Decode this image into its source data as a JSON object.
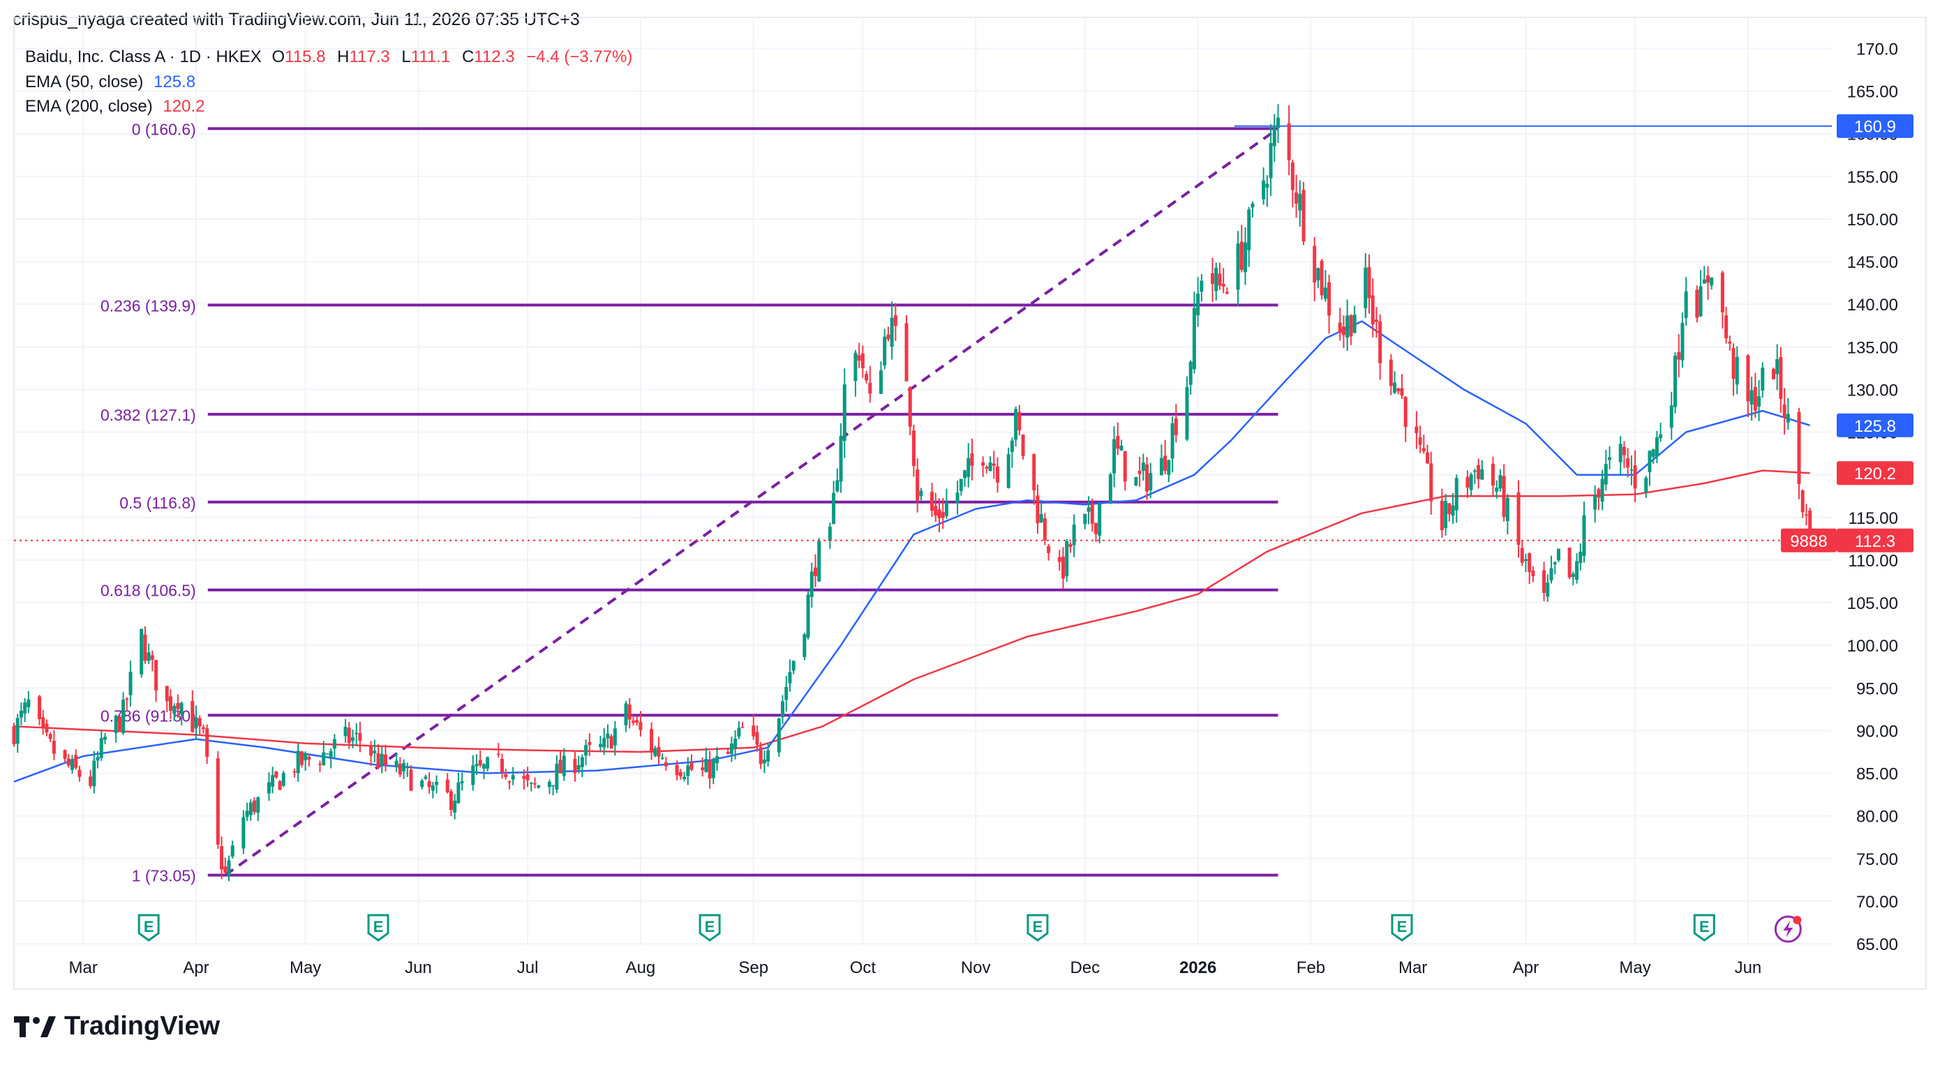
{
  "header": {
    "credit": "crispus_nyaga created with TradingView.com, Jun 11, 2026 07:35 UTC+3"
  },
  "legend": {
    "symbol": "Baidu, Inc. Class A · 1D · HKEX",
    "o_label": "O",
    "o_value": "115.8",
    "h_label": "H",
    "h_value": "117.3",
    "l_label": "L",
    "l_value": "111.1",
    "c_label": "C",
    "c_value": "112.3",
    "change": "−4.4 (−3.77%)",
    "ema50_label": "EMA (50, close)",
    "ema50_value": "125.8",
    "ema200_label": "EMA (200, close)",
    "ema200_value": "120.2"
  },
  "brand": {
    "name": "TradingView"
  },
  "colors": {
    "up": "#089981",
    "down": "#f23645",
    "ema50": "#2962ff",
    "ema200": "#f23645",
    "fib": "#7b1fa2",
    "grid": "#f0f3fa",
    "axis_text": "#131722",
    "price_line": "#f23645"
  },
  "chart_data": {
    "type": "candlestick",
    "title": "Baidu, Inc. Class A · 1D · HKEX",
    "ylim": [
      65,
      172
    ],
    "y_ticks": [
      "65.00",
      "70.00",
      "75.00",
      "80.00",
      "85.00",
      "90.00",
      "95.00",
      "100.00",
      "105.00",
      "110.00",
      "115.00",
      "120.00",
      "125.00",
      "130.00",
      "135.00",
      "140.00",
      "145.00",
      "150.00",
      "155.00",
      "160.00",
      "165.00",
      "170.0"
    ],
    "x_start": "2025-02-10",
    "x_end": "2026-06-24",
    "x_ticks": [
      {
        "date": "2025-03-01",
        "label": "Mar"
      },
      {
        "date": "2025-04-01",
        "label": "Apr"
      },
      {
        "date": "2025-05-01",
        "label": "May"
      },
      {
        "date": "2025-06-01",
        "label": "Jun"
      },
      {
        "date": "2025-07-01",
        "label": "Jul"
      },
      {
        "date": "2025-08-01",
        "label": "Aug"
      },
      {
        "date": "2025-09-01",
        "label": "Sep"
      },
      {
        "date": "2025-10-01",
        "label": "Oct"
      },
      {
        "date": "2025-11-01",
        "label": "Nov"
      },
      {
        "date": "2025-12-01",
        "label": "Dec"
      },
      {
        "date": "2026-01-01",
        "label": "2026",
        "bold": true
      },
      {
        "date": "2026-02-01",
        "label": "Feb"
      },
      {
        "date": "2026-03-01",
        "label": "Mar"
      },
      {
        "date": "2026-04-01",
        "label": "Apr"
      },
      {
        "date": "2026-05-01",
        "label": "May"
      },
      {
        "date": "2026-06-01",
        "label": "Jun"
      }
    ],
    "price_path": [
      [
        "2025-02-10",
        90
      ],
      [
        "2025-02-14",
        93
      ],
      [
        "2025-02-18",
        89
      ],
      [
        "2025-02-24",
        86
      ],
      [
        "2025-03-03",
        84
      ],
      [
        "2025-03-07",
        89
      ],
      [
        "2025-03-12",
        92
      ],
      [
        "2025-03-17",
        101
      ],
      [
        "2025-03-20",
        97
      ],
      [
        "2025-03-24",
        93
      ],
      [
        "2025-03-27",
        94
      ],
      [
        "2025-03-31",
        91
      ],
      [
        "2025-04-03",
        89
      ],
      [
        "2025-04-07",
        76
      ],
      [
        "2025-04-09",
        73
      ],
      [
        "2025-04-14",
        80
      ],
      [
        "2025-04-21",
        83
      ],
      [
        "2025-04-28",
        86
      ],
      [
        "2025-05-05",
        87
      ],
      [
        "2025-05-12",
        89
      ],
      [
        "2025-05-16",
        89
      ],
      [
        "2025-05-22",
        86
      ],
      [
        "2025-05-28",
        85
      ],
      [
        "2025-06-04",
        83
      ],
      [
        "2025-06-10",
        82
      ],
      [
        "2025-06-16",
        85
      ],
      [
        "2025-06-24",
        86
      ],
      [
        "2025-07-02",
        83
      ],
      [
        "2025-07-09",
        85
      ],
      [
        "2025-07-16",
        87
      ],
      [
        "2025-07-22",
        88
      ],
      [
        "2025-07-28",
        92
      ],
      [
        "2025-08-04",
        88
      ],
      [
        "2025-08-11",
        86
      ],
      [
        "2025-08-18",
        85
      ],
      [
        "2025-08-25",
        87
      ],
      [
        "2025-08-29",
        90
      ],
      [
        "2025-09-03",
        87
      ],
      [
        "2025-09-08",
        92
      ],
      [
        "2025-09-11",
        97
      ],
      [
        "2025-09-15",
        103
      ],
      [
        "2025-09-18",
        110
      ],
      [
        "2025-09-22",
        112
      ],
      [
        "2025-09-26",
        130
      ],
      [
        "2025-09-30",
        135
      ],
      [
        "2025-10-03",
        128
      ],
      [
        "2025-10-08",
        138
      ],
      [
        "2025-10-13",
        132
      ],
      [
        "2025-10-16",
        118
      ],
      [
        "2025-10-21",
        115
      ],
      [
        "2025-10-27",
        118
      ],
      [
        "2025-11-03",
        123
      ],
      [
        "2025-11-07",
        121
      ],
      [
        "2025-11-12",
        126
      ],
      [
        "2025-11-18",
        116
      ],
      [
        "2025-11-24",
        108
      ],
      [
        "2025-11-28",
        113
      ],
      [
        "2025-12-04",
        115
      ],
      [
        "2025-12-09",
        123
      ],
      [
        "2025-12-15",
        119
      ],
      [
        "2025-12-22",
        121
      ],
      [
        "2025-12-29",
        131
      ],
      [
        "2026-01-02",
        144
      ],
      [
        "2026-01-07",
        142
      ],
      [
        "2026-01-12",
        145
      ],
      [
        "2026-01-16",
        150
      ],
      [
        "2026-01-21",
        158
      ],
      [
        "2026-01-23",
        160.6
      ],
      [
        "2026-01-27",
        155
      ],
      [
        "2026-02-02",
        145
      ],
      [
        "2026-02-06",
        140
      ],
      [
        "2026-02-10",
        137
      ],
      [
        "2026-02-16",
        142
      ],
      [
        "2026-02-20",
        135
      ],
      [
        "2026-02-26",
        129
      ],
      [
        "2026-03-03",
        122
      ],
      [
        "2026-03-09",
        114
      ],
      [
        "2026-03-13",
        118
      ],
      [
        "2026-03-19",
        121
      ],
      [
        "2026-03-25",
        118
      ],
      [
        "2026-03-31",
        110
      ],
      [
        "2026-04-06",
        105
      ],
      [
        "2026-04-10",
        110
      ],
      [
        "2026-04-14",
        107
      ],
      [
        "2026-04-17",
        114
      ],
      [
        "2026-04-22",
        120
      ],
      [
        "2026-04-27",
        122
      ],
      [
        "2026-05-02",
        119
      ],
      [
        "2026-05-07",
        124
      ],
      [
        "2026-05-12",
        132
      ],
      [
        "2026-05-15",
        143
      ],
      [
        "2026-05-19",
        140
      ],
      [
        "2026-05-22",
        145
      ],
      [
        "2026-05-27",
        134
      ],
      [
        "2026-06-01",
        128
      ],
      [
        "2026-06-04",
        130
      ],
      [
        "2026-06-08",
        133
      ],
      [
        "2026-06-11",
        128
      ],
      [
        "2026-06-15",
        119
      ],
      [
        "2026-06-18",
        112.3
      ]
    ],
    "ema50": [
      [
        "2025-02-10",
        84
      ],
      [
        "2025-03-01",
        87
      ],
      [
        "2025-04-01",
        89
      ],
      [
        "2025-04-20",
        88
      ],
      [
        "2025-05-20",
        86
      ],
      [
        "2025-06-20",
        85
      ],
      [
        "2025-07-20",
        85.3
      ],
      [
        "2025-08-20",
        86.5
      ],
      [
        "2025-09-05",
        88
      ],
      [
        "2025-09-25",
        100
      ],
      [
        "2025-10-15",
        113
      ],
      [
        "2025-11-01",
        116
      ],
      [
        "2025-11-15",
        117
      ],
      [
        "2025-12-01",
        116.5
      ],
      [
        "2025-12-15",
        117
      ],
      [
        "2025-12-31",
        120
      ],
      [
        "2026-01-10",
        124
      ],
      [
        "2026-01-25",
        131
      ],
      [
        "2026-02-05",
        136
      ],
      [
        "2026-02-15",
        138
      ],
      [
        "2026-03-01",
        134
      ],
      [
        "2026-03-15",
        130
      ],
      [
        "2026-04-01",
        126
      ],
      [
        "2026-04-15",
        120
      ],
      [
        "2026-05-01",
        120
      ],
      [
        "2026-05-15",
        125
      ],
      [
        "2026-06-05",
        127.5
      ],
      [
        "2026-06-18",
        125.8
      ]
    ],
    "ema200": [
      [
        "2025-02-10",
        90.5
      ],
      [
        "2025-04-01",
        89.5
      ],
      [
        "2025-05-01",
        88.5
      ],
      [
        "2025-06-01",
        88
      ],
      [
        "2025-07-01",
        87.7
      ],
      [
        "2025-08-01",
        87.5
      ],
      [
        "2025-09-01",
        88
      ],
      [
        "2025-09-20",
        90.5
      ],
      [
        "2025-10-15",
        96
      ],
      [
        "2025-11-15",
        101
      ],
      [
        "2025-12-15",
        104
      ],
      [
        "2026-01-01",
        106
      ],
      [
        "2026-01-20",
        111
      ],
      [
        "2026-02-15",
        115.5
      ],
      [
        "2026-03-10",
        117.5
      ],
      [
        "2026-04-10",
        117.5
      ],
      [
        "2026-05-01",
        117.7
      ],
      [
        "2026-05-20",
        119
      ],
      [
        "2026-06-05",
        120.5
      ],
      [
        "2026-06-18",
        120.2
      ]
    ],
    "fib_levels": [
      {
        "ratio": "0",
        "price": 160.6,
        "label": "0 (160.6)"
      },
      {
        "ratio": "0.236",
        "price": 139.9,
        "label": "0.236 (139.9)"
      },
      {
        "ratio": "0.382",
        "price": 127.1,
        "label": "0.382 (127.1)"
      },
      {
        "ratio": "0.5",
        "price": 116.8,
        "label": "0.5 (116.8)"
      },
      {
        "ratio": "0.618",
        "price": 106.5,
        "label": "0.618 (106.5)"
      },
      {
        "ratio": "0.786",
        "price": 91.8,
        "label": "0.786 (91.80)"
      },
      {
        "ratio": "1",
        "price": 73.05,
        "label": "1 (73.05)"
      }
    ],
    "fib_start": [
      "2025-04-09",
      73.05
    ],
    "fib_end": [
      "2026-01-23",
      160.6
    ],
    "high_line": {
      "price": 160.9,
      "from": "2026-01-11",
      "label": "160.9"
    },
    "last_price": {
      "price": 112.3,
      "label": "112.3",
      "countdown": "9888"
    },
    "axis_badges": [
      {
        "price": 125.8,
        "label": "125.8",
        "color": "#2962ff"
      },
      {
        "price": 120.2,
        "label": "120.2",
        "color": "#f23645"
      }
    ],
    "earnings_markers": [
      "2025-03-19",
      "2025-05-21",
      "2025-08-20",
      "2025-11-18",
      "2026-02-26",
      "2026-05-20"
    ],
    "dividend_marker": "2026-06-12"
  }
}
